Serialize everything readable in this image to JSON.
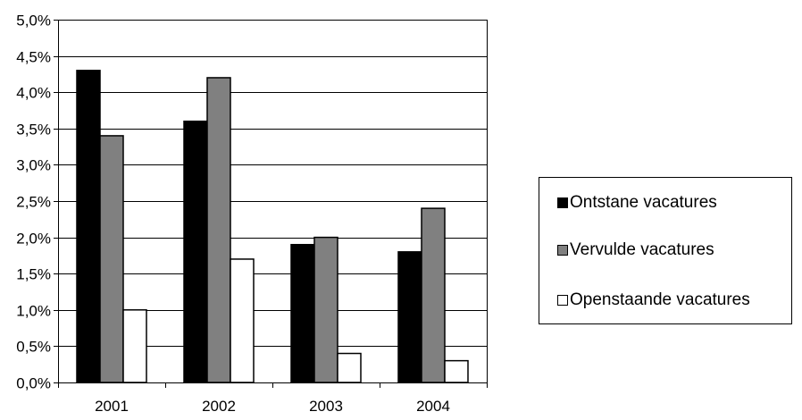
{
  "chart_data": {
    "type": "bar",
    "categories": [
      "2001",
      "2002",
      "2003",
      "2004"
    ],
    "series": [
      {
        "name": "Ontstane vacatures",
        "values": [
          4.3,
          3.6,
          1.9,
          1.8
        ],
        "color": "#000000"
      },
      {
        "name": "Vervulde vacatures",
        "values": [
          3.4,
          4.2,
          2.0,
          2.4
        ],
        "color": "#808080"
      },
      {
        "name": "Openstaande vacatures",
        "values": [
          1.0,
          1.7,
          0.4,
          0.3
        ],
        "color": "#ffffff"
      }
    ],
    "ylim": [
      0,
      5.0
    ],
    "yticks": [
      "0,0%",
      "0,5%",
      "1,0%",
      "1,5%",
      "2,0%",
      "2,5%",
      "3,0%",
      "3,5%",
      "4,0%",
      "4,5%",
      "5,0%"
    ],
    "title": "",
    "xlabel": "",
    "ylabel": "",
    "grid": true,
    "legend_position": "right"
  }
}
